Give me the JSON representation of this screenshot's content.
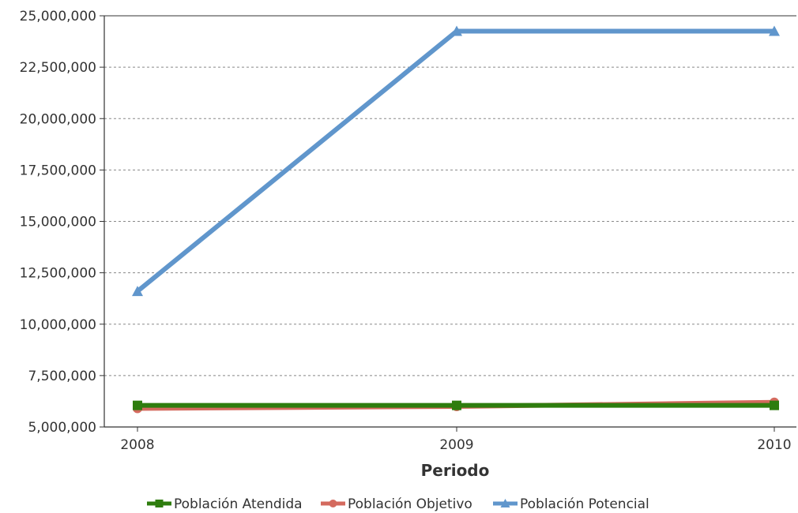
{
  "chart_data": {
    "type": "line",
    "title": "",
    "xlabel": "Periodo",
    "ylabel": "",
    "categories": [
      "2008",
      "2009",
      "2010"
    ],
    "ylim": [
      5000000,
      25000000
    ],
    "yticks": [
      5000000,
      7500000,
      10000000,
      12500000,
      15000000,
      17500000,
      20000000,
      22500000,
      25000000
    ],
    "ytick_labels": [
      "5,000,000",
      "7,500,000",
      "10,000,000",
      "12,500,000",
      "15,000,000",
      "17,500,000",
      "20,000,000",
      "22,500,000",
      "25,000,000"
    ],
    "grid": true,
    "legend_position": "bottom",
    "series": [
      {
        "name": "Población Atendida",
        "color": "#2e7d0e",
        "marker": "square",
        "values": [
          6050000,
          6050000,
          6050000
        ]
      },
      {
        "name": "Población Objetivo",
        "color": "#d46a5e",
        "marker": "circle",
        "values": [
          5900000,
          6000000,
          6200000
        ]
      },
      {
        "name": "Población Potencial",
        "color": "#6096cc",
        "marker": "triangle",
        "values": [
          11600000,
          24250000,
          24250000
        ]
      }
    ]
  }
}
